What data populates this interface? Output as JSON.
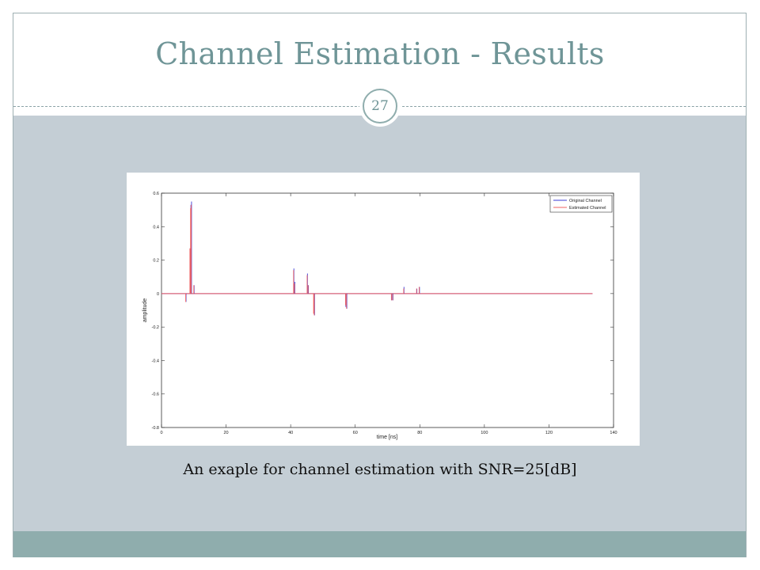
{
  "slide": {
    "title": "Channel Estimation - Results",
    "number": "27",
    "caption": "An exaple for channel estimation with SNR=25[dB]",
    "colors": {
      "title": "#6f9597",
      "content_band": "#c4ced5",
      "bottom_band": "#8fadad"
    }
  },
  "chart_data": {
    "type": "line",
    "title": "",
    "xlabel": "time [ns]",
    "ylabel": "amplitude",
    "xlim": [
      0,
      140
    ],
    "ylim": [
      -0.8,
      0.6
    ],
    "xticks": [
      0,
      20,
      40,
      60,
      80,
      100,
      120,
      140
    ],
    "yticks": [
      0.6,
      0.4,
      0.2,
      0,
      -0.2,
      -0.4,
      -0.6,
      -0.8
    ],
    "ytick_labels": [
      "0.6",
      "0.4",
      "0.2",
      "0",
      "-0.2",
      "-0.4",
      "-0.6",
      "-0.8"
    ],
    "grid": false,
    "legend": "top-right",
    "baseline_x_range": [
      0,
      133.5
    ],
    "series": [
      {
        "name": "Original Channel",
        "color": "#3b3bd6",
        "points": [
          [
            7.6,
            -0.05
          ],
          [
            8.9,
            0.27
          ],
          [
            9.1,
            0.53
          ],
          [
            9.3,
            0.55
          ],
          [
            10.1,
            0.05
          ],
          [
            41.0,
            0.15
          ],
          [
            41.3,
            0.07
          ],
          [
            45.2,
            0.12
          ],
          [
            45.5,
            0.05
          ],
          [
            47.2,
            -0.12
          ],
          [
            47.4,
            -0.13
          ],
          [
            57.1,
            -0.08
          ],
          [
            57.4,
            -0.09
          ],
          [
            71.3,
            -0.04
          ],
          [
            71.7,
            -0.04
          ],
          [
            75.1,
            0.04
          ],
          [
            79.1,
            0.03
          ],
          [
            79.9,
            0.04
          ]
        ]
      },
      {
        "name": "Estimated Channel",
        "color": "#f06060",
        "points": [
          [
            7.5,
            -0.05
          ],
          [
            8.8,
            0.27
          ],
          [
            9.0,
            0.51
          ],
          [
            9.2,
            0.53
          ],
          [
            10.0,
            0.05
          ],
          [
            40.9,
            0.14
          ],
          [
            41.2,
            0.06
          ],
          [
            45.1,
            0.11
          ],
          [
            45.4,
            0.05
          ],
          [
            47.1,
            -0.12
          ],
          [
            47.3,
            -0.13
          ],
          [
            57.0,
            -0.07
          ],
          [
            57.3,
            -0.09
          ],
          [
            71.2,
            -0.04
          ],
          [
            71.6,
            -0.04
          ],
          [
            75.0,
            0.03
          ],
          [
            79.0,
            0.03
          ],
          [
            79.8,
            0.04
          ]
        ]
      }
    ]
  }
}
